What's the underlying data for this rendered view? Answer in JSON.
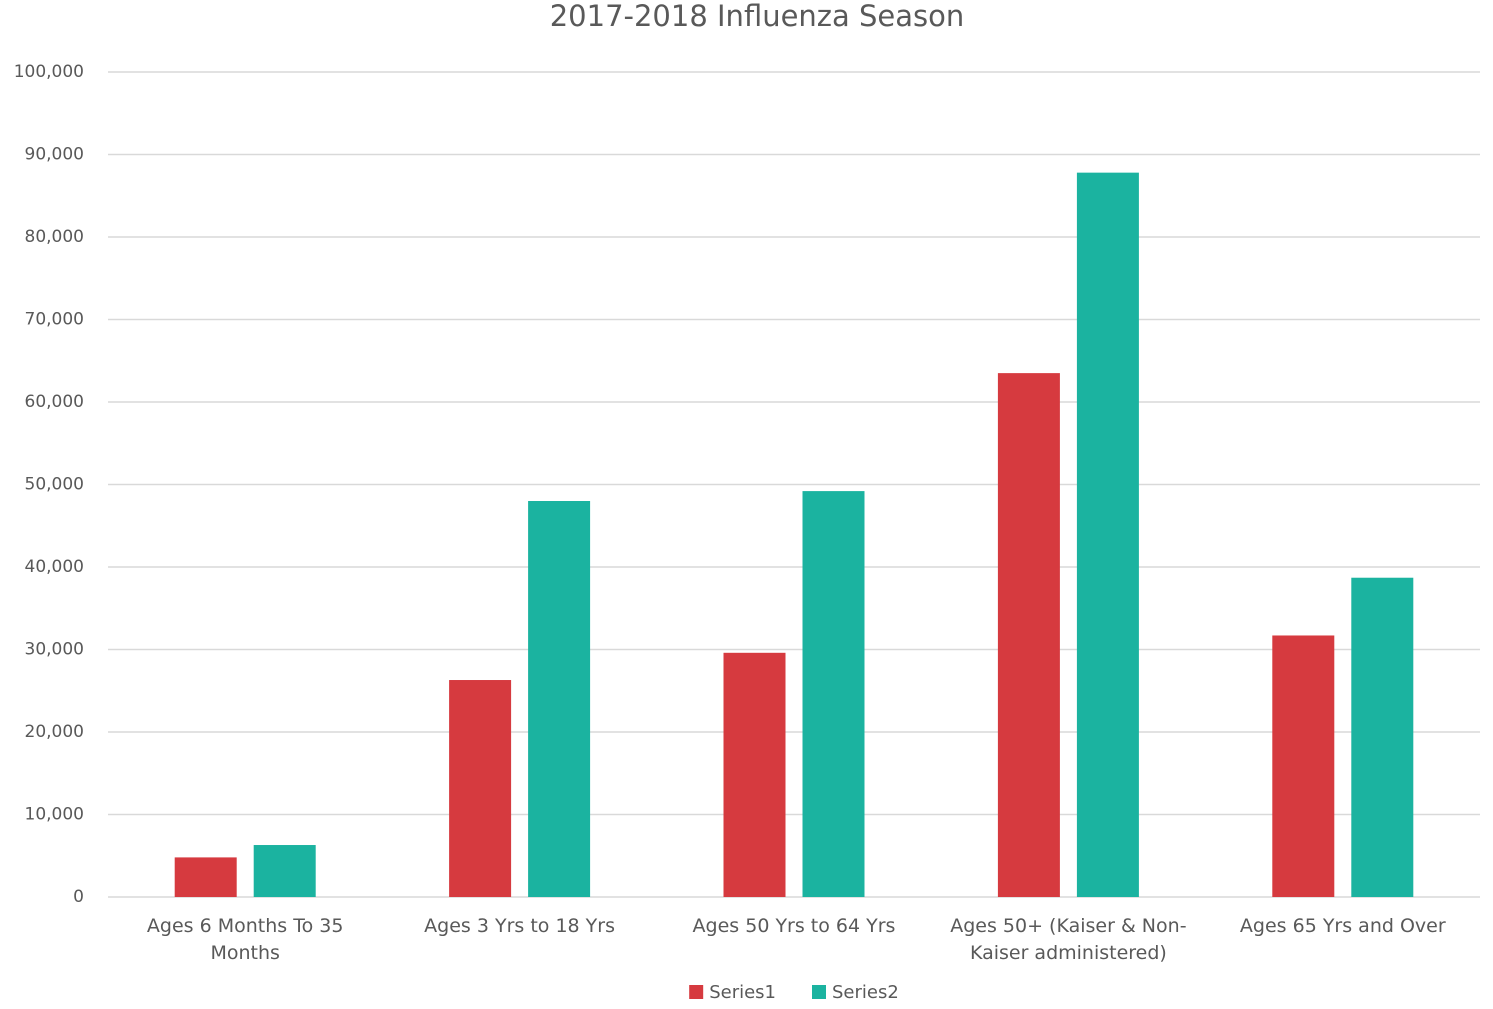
{
  "chart_data": {
    "type": "bar",
    "title": "2017-2018 Influenza Season",
    "categories": [
      "Ages 6 Months To 35 Months",
      "Ages 3 Yrs to 18 Yrs",
      "Ages 50 Yrs to 64 Yrs",
      "Ages 50+ (Kaiser & Non-Kaiser administered)",
      "Ages 65 Yrs and Over"
    ],
    "series": [
      {
        "name": "Series1",
        "color": "#d63a3f",
        "values": [
          4800,
          26300,
          29600,
          63500,
          31700
        ]
      },
      {
        "name": "Series2",
        "color": "#1bb3a0",
        "values": [
          6300,
          48000,
          49200,
          87800,
          38700
        ]
      }
    ],
    "ylim": [
      0,
      100000
    ],
    "yticks": [
      0,
      {
        "value": 10000,
        "label": "10,000"
      },
      {
        "value": 20000,
        "label": "20,000"
      },
      {
        "value": 30000,
        "label": "30,000"
      },
      {
        "value": 40000,
        "label": "40,000"
      },
      {
        "value": 50000,
        "label": "50,000"
      },
      {
        "value": 60000,
        "label": "60,000"
      },
      {
        "value": 70000,
        "label": "70,000"
      },
      {
        "value": 80000,
        "label": "80,000"
      },
      {
        "value": 90000,
        "label": "90,000"
      },
      {
        "value": 100000,
        "label": "100,000"
      }
    ],
    "grid": true,
    "legend": "bottom"
  }
}
